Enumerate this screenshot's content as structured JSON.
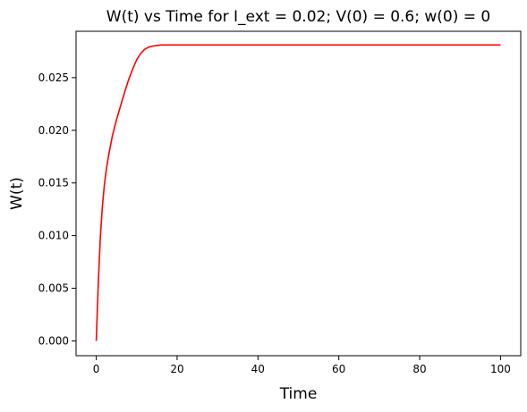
{
  "chart_data": {
    "type": "line",
    "title": "W(t) vs Time for I_ext = 0.02; V(0) = 0.6; w(0) = 0",
    "xlabel": "Time",
    "ylabel": "W(t)",
    "xlim": [
      -5,
      105
    ],
    "ylim": [
      -0.0014,
      0.0294
    ],
    "xticks": [
      0,
      20,
      40,
      60,
      80,
      100
    ],
    "xtick_labels": [
      "0",
      "20",
      "40",
      "60",
      "80",
      "100"
    ],
    "yticks": [
      0.0,
      0.005,
      0.01,
      0.015,
      0.02,
      0.025
    ],
    "ytick_labels": [
      "0.000",
      "0.005",
      "0.010",
      "0.015",
      "0.020",
      "0.025"
    ],
    "grid": false,
    "series": [
      {
        "color": "#ff0000",
        "x": [
          0,
          0.5,
          1,
          1.5,
          2,
          2.5,
          3,
          4,
          5,
          6,
          7,
          8,
          9,
          10,
          11,
          12,
          13,
          14,
          15,
          16,
          18,
          20,
          25,
          30,
          40,
          50,
          60,
          70,
          80,
          90,
          100
        ],
        "y": [
          0.0,
          0.0055,
          0.0098,
          0.0127,
          0.0148,
          0.0163,
          0.0175,
          0.0195,
          0.021,
          0.0223,
          0.0236,
          0.0248,
          0.0258,
          0.0267,
          0.0273,
          0.0277,
          0.0279,
          0.028,
          0.02805,
          0.0281,
          0.0281,
          0.0281,
          0.0281,
          0.0281,
          0.0281,
          0.0281,
          0.0281,
          0.0281,
          0.0281,
          0.0281,
          0.0281
        ]
      }
    ]
  }
}
